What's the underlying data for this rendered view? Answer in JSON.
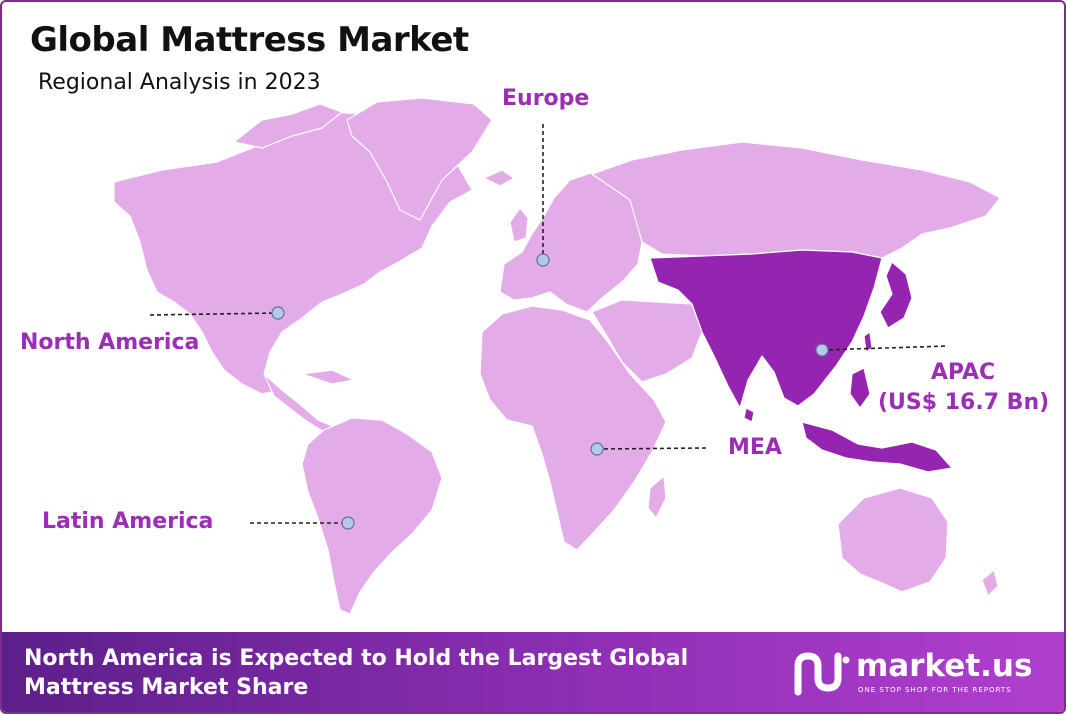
{
  "header": {
    "title": "Global Mattress Market",
    "subtitle": "Regional Analysis in 2023"
  },
  "regions": {
    "europe": "Europe",
    "north_america": "North America",
    "apac_name": "APAC",
    "apac_value": "(US$ 16.7 Bn)",
    "mea": "MEA",
    "latin_america": "Latin America"
  },
  "footer": {
    "line1": "North America is Expected to Hold the Largest Global",
    "line2": "Mattress Market Share"
  },
  "logo": {
    "name": "market.us",
    "tagline": "ONE STOP SHOP FOR THE REPORTS"
  },
  "colors": {
    "land": "#e4abe9",
    "highlight": "#9525b0",
    "label": "#9b2eb5",
    "footer_start": "#5d1f8a",
    "footer_end": "#b13fcf"
  },
  "highlighted_region": "APAC"
}
